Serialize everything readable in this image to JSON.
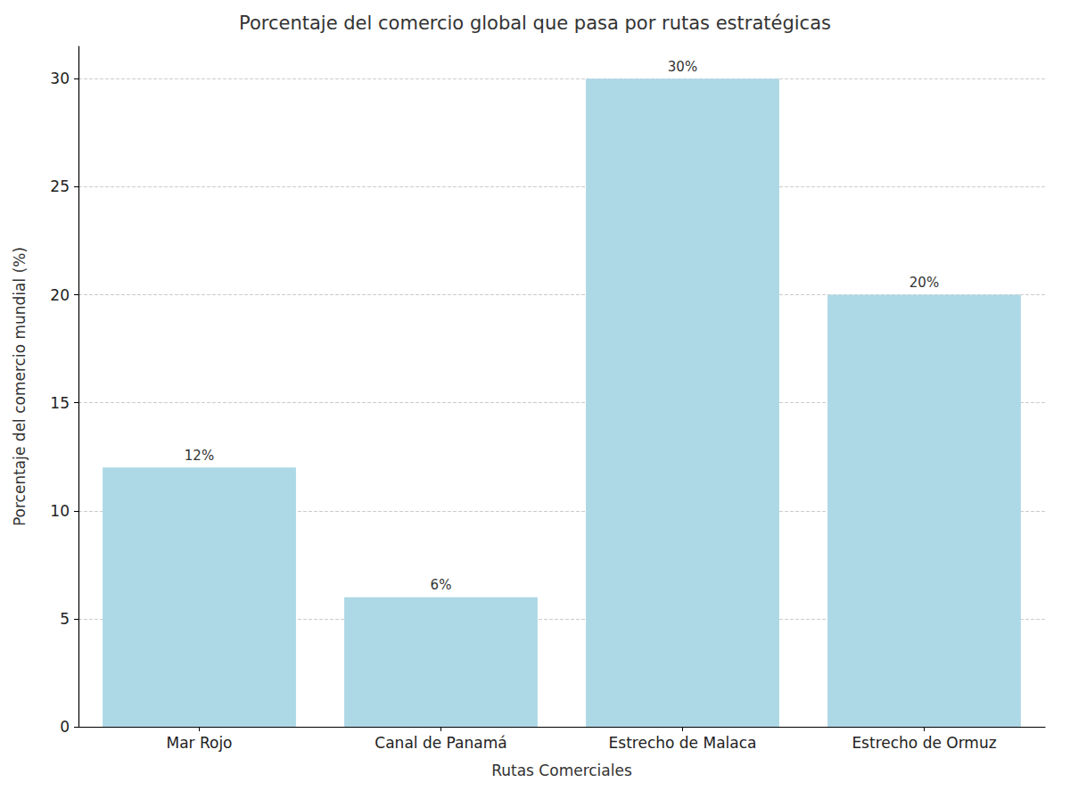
{
  "chart_data": {
    "type": "bar",
    "title": "Porcentaje del comercio global que pasa por rutas estratégicas",
    "x_label": "Rutas Comerciales",
    "y_label": "Porcentaje del comercio mundial (%)",
    "categories": [
      "Mar Rojo",
      "Canal de Panamá",
      "Estrecho de Malaca",
      "Estrecho de Ormuz"
    ],
    "values": [
      12,
      6,
      30,
      20
    ],
    "value_labels": [
      "12%",
      "6%",
      "30%",
      "20%"
    ],
    "data_labels": true,
    "color": "#add8e6",
    "ylim": [
      0,
      31.5
    ],
    "yticks": [
      0,
      5,
      10,
      15,
      20,
      25,
      30
    ],
    "grid": true
  }
}
